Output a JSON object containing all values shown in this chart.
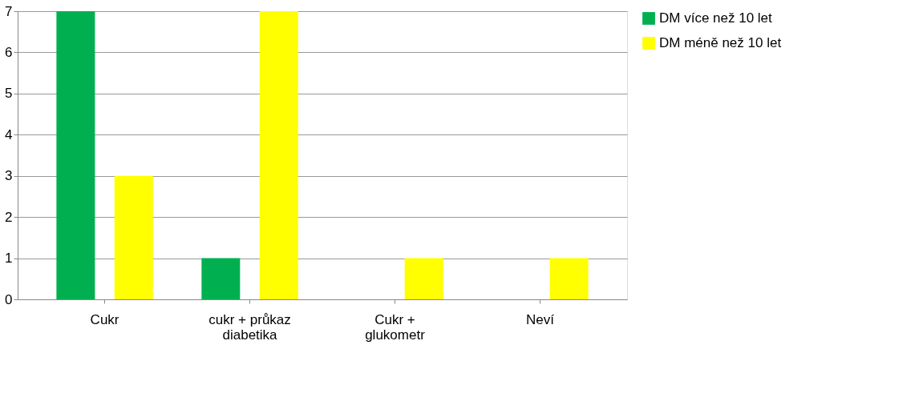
{
  "chart_data": {
    "type": "bar",
    "categories": [
      "Cukr",
      "cukr + průkaz diabetika",
      "Cukr + glukometr",
      "Neví"
    ],
    "series": [
      {
        "name": "DM více než 10 let",
        "color": "#00b050",
        "values": [
          7,
          1,
          0,
          0
        ]
      },
      {
        "name": "DM méně než 10 let",
        "color": "#ffff00",
        "values": [
          3,
          7,
          1,
          1
        ]
      }
    ],
    "ylim": [
      0,
      7
    ],
    "yticks": [
      0,
      1,
      2,
      3,
      4,
      5,
      6,
      7
    ],
    "grid": "y",
    "legend": "right"
  }
}
